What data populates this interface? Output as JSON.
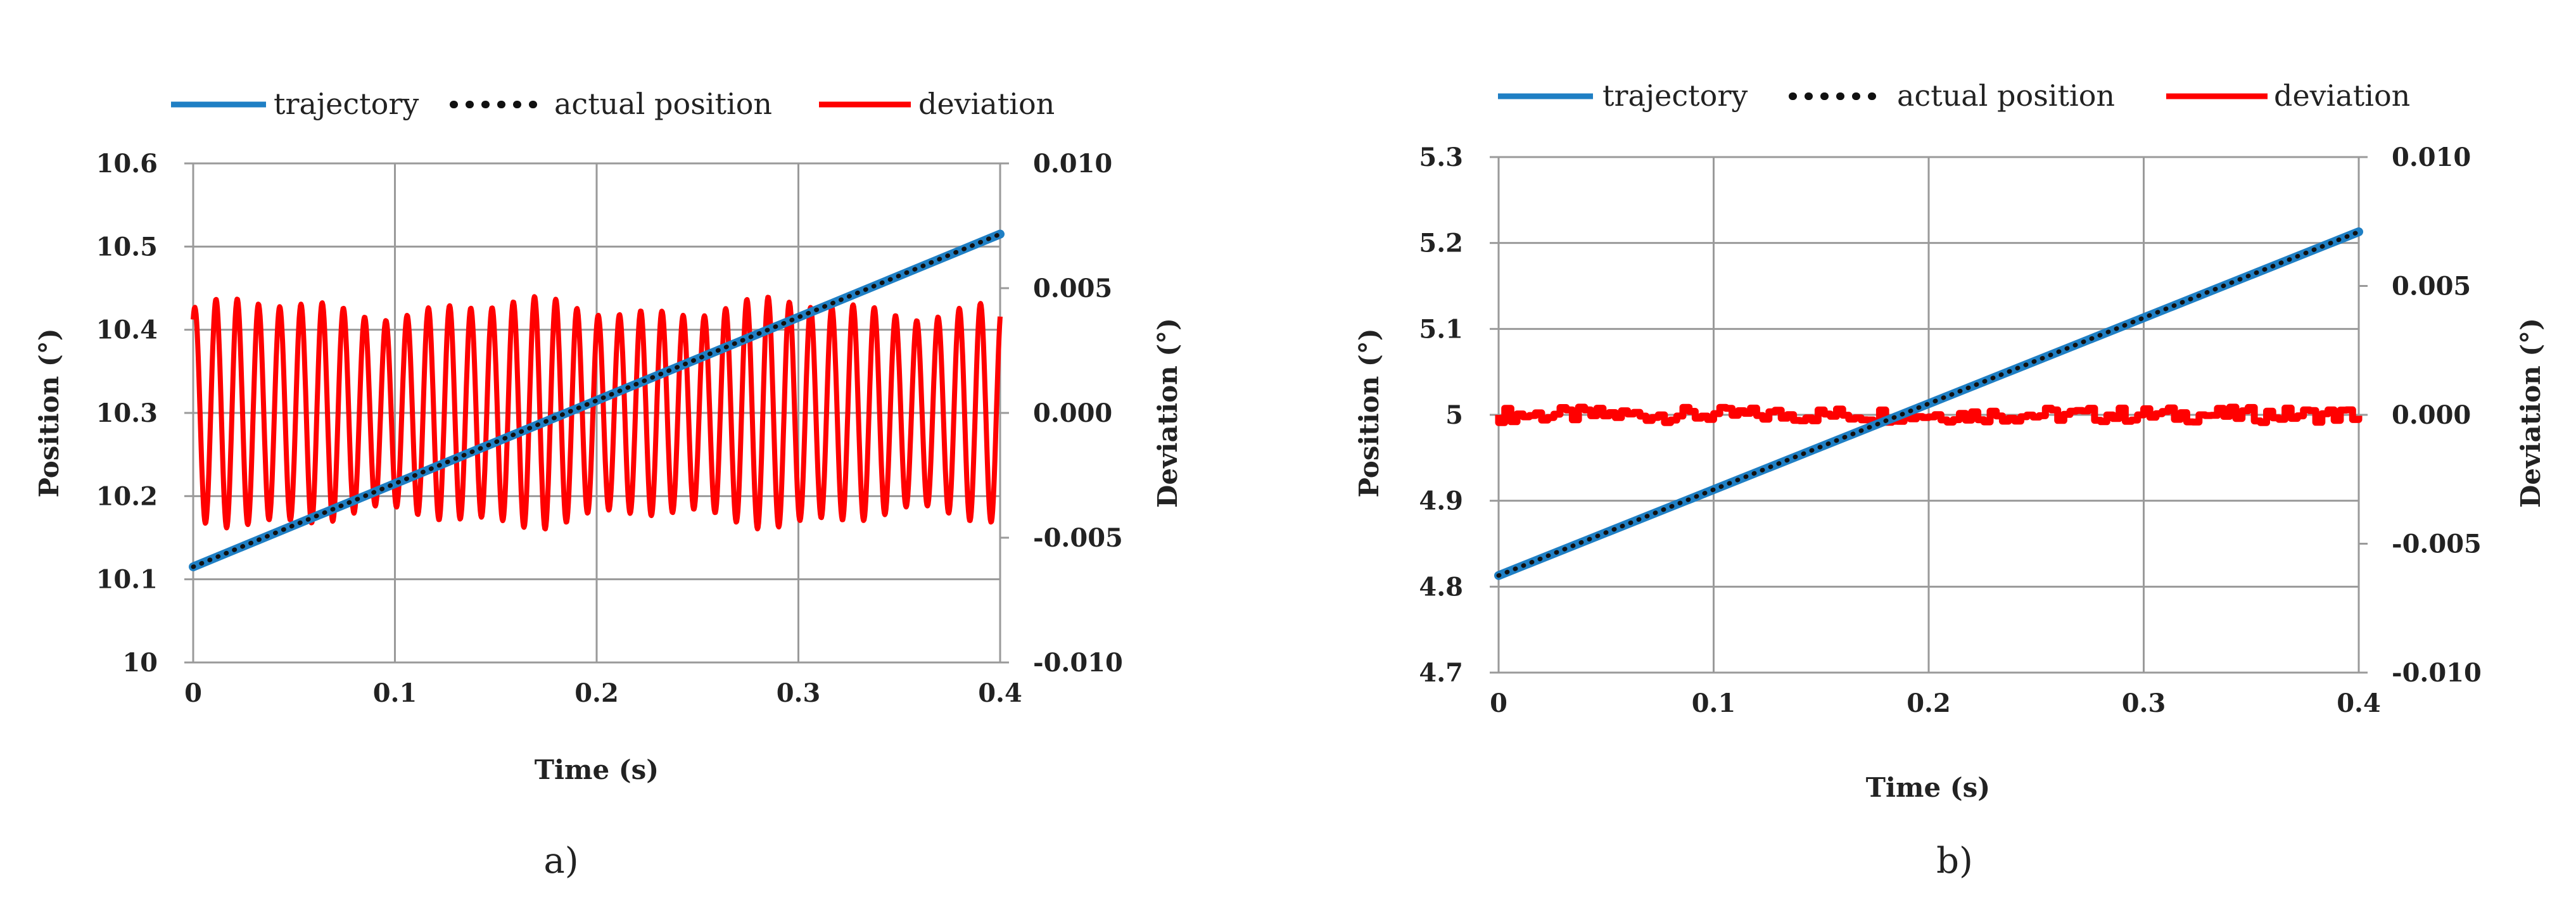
{
  "legend": {
    "trajectory": "trajectory",
    "actual": "actual position",
    "deviation": "deviation"
  },
  "colors": {
    "trajectory": "#1f7fc4",
    "actual": "#111111",
    "deviation": "#ff0000",
    "grid": "#9a9a9a"
  },
  "chart_data": [
    {
      "type": "line",
      "panel_label": "a)",
      "xlabel": "Time (s)",
      "ylabel_left": "Position (°)",
      "ylabel_right": "Deviation (°)",
      "xlim": [
        0,
        0.4
      ],
      "ylim_left": [
        10,
        10.6
      ],
      "ylim_right": [
        -0.01,
        0.01
      ],
      "x_ticks": [
        "0",
        "0.1",
        "0.2",
        "0.3",
        "0.4"
      ],
      "y_left_ticks": [
        "10",
        "10.1",
        "10.2",
        "10.3",
        "10.4",
        "10.5",
        "10.6"
      ],
      "y_right_ticks": [
        "-0.010",
        "-0.005",
        "0.000",
        "0.005",
        "0.010"
      ],
      "series": [
        {
          "name": "trajectory",
          "axis": "left",
          "x": [
            0,
            0.4
          ],
          "y": [
            10.115,
            10.515
          ]
        },
        {
          "name": "actual position",
          "axis": "left",
          "x": [
            0,
            0.4
          ],
          "y": [
            10.115,
            10.515
          ]
        },
        {
          "name": "deviation",
          "axis": "right",
          "oscillation": {
            "cycles": 38,
            "center": 0.0,
            "amplitude": 0.0042
          }
        }
      ]
    },
    {
      "type": "line",
      "panel_label": "b)",
      "xlabel": "Time (s)",
      "ylabel_left": "Position (°)",
      "ylabel_right": "Deviation (°)",
      "xlim": [
        0,
        0.4
      ],
      "ylim_left": [
        4.7,
        5.3
      ],
      "ylim_right": [
        -0.01,
        0.01
      ],
      "x_ticks": [
        "0",
        "0.1",
        "0.2",
        "0.3",
        "0.4"
      ],
      "y_left_ticks": [
        "4.7",
        "4.8",
        "4.9",
        "5",
        "5.1",
        "5.2",
        "5.3"
      ],
      "y_right_ticks": [
        "-0.010",
        "-0.005",
        "0.000",
        "0.005",
        "0.010"
      ],
      "series": [
        {
          "name": "trajectory",
          "axis": "left",
          "x": [
            0,
            0.4
          ],
          "y": [
            4.813,
            5.213
          ]
        },
        {
          "name": "actual position",
          "axis": "left",
          "x": [
            0,
            0.4
          ],
          "y": [
            4.813,
            5.213
          ]
        },
        {
          "name": "deviation",
          "axis": "right",
          "noise": {
            "center": 0.0,
            "amplitude": 0.0003
          }
        }
      ]
    }
  ]
}
